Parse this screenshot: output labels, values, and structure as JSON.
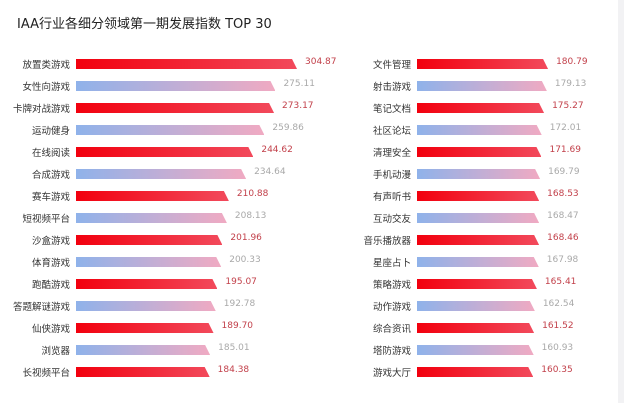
{
  "chart_data": {
    "type": "bar",
    "orientation": "horizontal",
    "title": "IAA行业各细分领域第一期发展指数 TOP 30",
    "colors": {
      "highlight_start": "#f2000e",
      "highlight_end": "#f24a5c",
      "alt_start": "#8fb2ea",
      "alt_end": "#f0aac2",
      "highlight_value": "#c2404a",
      "alt_value": "#a9a9a9"
    },
    "panels": [
      {
        "categories": [
          "放置类游戏",
          "女性向游戏",
          "卡牌对战游戏",
          "运动健身",
          "在线阅读",
          "合成游戏",
          "赛车游戏",
          "短视频平台",
          "沙盒游戏",
          "体育游戏",
          "跑酷游戏",
          "答题解谜游戏",
          "仙侠游戏",
          "浏览器",
          "长视频平台"
        ],
        "values": [
          "304.87",
          "275.11",
          "273.17",
          "259.86",
          "244.62",
          "234.64",
          "210.88",
          "208.13",
          "201.96",
          "200.33",
          "195.07",
          "192.78",
          "189.70",
          "185.01",
          "184.38"
        ]
      },
      {
        "categories": [
          "文件管理",
          "射击游戏",
          "笔记文档",
          "社区论坛",
          "清理安全",
          "手机动漫",
          "有声听书",
          "互动交友",
          "音乐播放器",
          "星座占卜",
          "策略游戏",
          "动作游戏",
          "综合资讯",
          "塔防游戏",
          "游戏大厅"
        ],
        "values": [
          "180.79",
          "179.13",
          "175.27",
          "172.01",
          "171.69",
          "169.79",
          "168.53",
          "168.47",
          "168.46",
          "167.98",
          "165.41",
          "162.54",
          "161.52",
          "160.93",
          "160.35"
        ]
      }
    ],
    "xlim": [
      0,
      310
    ],
    "grid": false,
    "legend": "none"
  }
}
